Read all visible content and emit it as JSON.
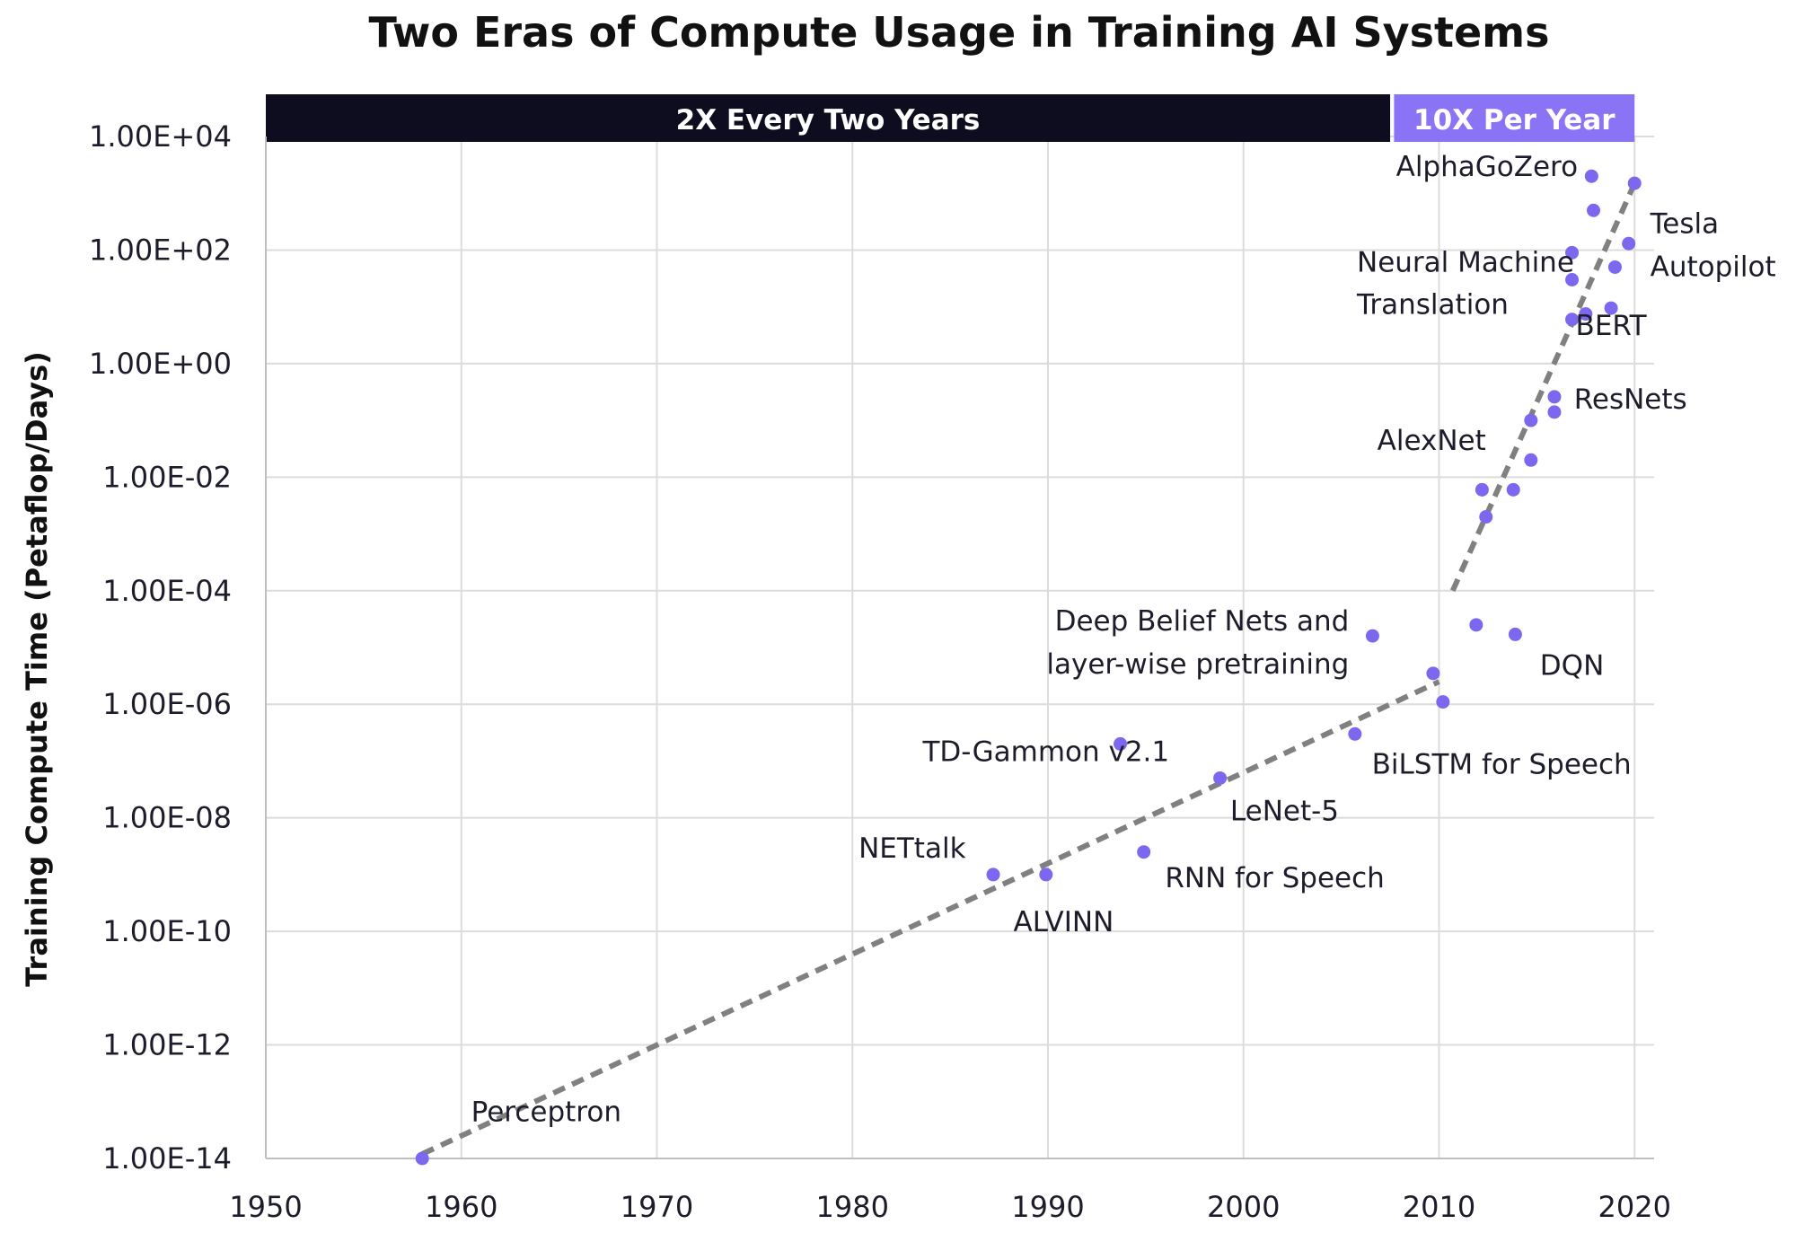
{
  "colors": {
    "point": "#7b68ee",
    "trend": "#808080",
    "banner_dark": "#0d0d1f",
    "banner_light": "#8b73f5",
    "grid": "#dcdcdc"
  },
  "chart_data": {
    "type": "scatter",
    "title": "Two Eras of Compute Usage in Training AI Systems",
    "xlabel": "",
    "ylabel": "Training Compute Time (Petaflop/Days)",
    "xlim": [
      1950,
      2021
    ],
    "ylim_log10": [
      -14,
      4
    ],
    "y_scale": "log",
    "grid": true,
    "x_ticks": [
      "1950",
      "1960",
      "1970",
      "1980",
      "1990",
      "2000",
      "2010",
      "2020"
    ],
    "y_ticks": [
      "1.00E+04",
      "1.00E+02",
      "1.00E+00",
      "1.00E-02",
      "1.00E-04",
      "1.00E-06",
      "1.00E-08",
      "1.00E-10",
      "1.00E-12",
      "1.00E-14"
    ],
    "eras": [
      {
        "label": "2X Every Two Years",
        "start": 1950,
        "end": 2007.5
      },
      {
        "label": "10X Per Year",
        "start": 2007.7,
        "end": 2020
      }
    ],
    "points": [
      {
        "x": 1958,
        "y": 1e-14
      },
      {
        "x": 1987.2,
        "y": 1e-09
      },
      {
        "x": 1989.9,
        "y": 1e-09
      },
      {
        "x": 1993.7,
        "y": 2e-07
      },
      {
        "x": 1994.9,
        "y": 2.5e-09
      },
      {
        "x": 1998.8,
        "y": 5e-08
      },
      {
        "x": 2005.7,
        "y": 3e-07
      },
      {
        "x": 2006.6,
        "y": 1.6e-05
      },
      {
        "x": 2009.7,
        "y": 3.5e-06
      },
      {
        "x": 2010.2,
        "y": 1.1e-06
      },
      {
        "x": 2011.9,
        "y": 2.5e-05
      },
      {
        "x": 2013.9,
        "y": 1.7e-05
      },
      {
        "x": 2012.2,
        "y": 0.006
      },
      {
        "x": 2012.4,
        "y": 0.002
      },
      {
        "x": 2013.8,
        "y": 0.006
      },
      {
        "x": 2014.7,
        "y": 0.02
      },
      {
        "x": 2014.7,
        "y": 0.1
      },
      {
        "x": 2015.9,
        "y": 0.14
      },
      {
        "x": 2015.9,
        "y": 0.26
      },
      {
        "x": 2016.8,
        "y": 6.0
      },
      {
        "x": 2017.5,
        "y": 7.5
      },
      {
        "x": 2018.8,
        "y": 9.5
      },
      {
        "x": 2016.8,
        "y": 30
      },
      {
        "x": 2016.8,
        "y": 90
      },
      {
        "x": 2019.0,
        "y": 50
      },
      {
        "x": 2019.7,
        "y": 130
      },
      {
        "x": 2017.9,
        "y": 500
      },
      {
        "x": 2017.8,
        "y": 2000
      },
      {
        "x": 2020.0,
        "y": 1500
      }
    ],
    "trendlines": [
      {
        "label": "2X Every Two Years",
        "x0": 1958,
        "y0": 1.2e-14,
        "x1": 2010,
        "y1": 2.5e-06
      },
      {
        "label": "10X Per Year",
        "x0": 2010.7,
        "y0": 0.0001,
        "x1": 2020,
        "y1": 1500
      }
    ],
    "annotations": [
      {
        "text": "Perceptron",
        "x": 1960.5,
        "y": 4.5e-14,
        "anchor": "start"
      },
      {
        "text": "NETtalk",
        "x": 1985.8,
        "y": 2e-09,
        "anchor": "end"
      },
      {
        "text": "ALVINN",
        "x": 1990.8,
        "y": 1e-10,
        "anchor": "middle"
      },
      {
        "text": "TD-Gammon v2.1",
        "x": 1989.9,
        "y": 1e-07,
        "anchor": "middle"
      },
      {
        "text": "LeNet-5",
        "x": 2002.1,
        "y": 9e-09,
        "anchor": "middle"
      },
      {
        "text": "RNN for Speech",
        "x": 2001.6,
        "y": 6e-10,
        "anchor": "middle"
      },
      {
        "text": "BiLSTM for Speech",
        "x": 2013.2,
        "y": 6e-08,
        "anchor": "middle"
      },
      {
        "text": "Deep Belief Nets and",
        "x": 2005.4,
        "y": 2e-05,
        "anchor": "end"
      },
      {
        "text": "layer-wise pretraining",
        "x": 2005.4,
        "y": 3.5e-06,
        "anchor": "end"
      },
      {
        "text": "DQN",
        "x": 2016.8,
        "y": 3.3e-06,
        "anchor": "middle"
      },
      {
        "text": "AlexNet",
        "x": 2012.4,
        "y": 0.03,
        "anchor": "end"
      },
      {
        "text": "ResNets",
        "x": 2016.9,
        "y": 0.16,
        "anchor": "start"
      },
      {
        "text": "Neural Machine",
        "x": 2005.8,
        "y": 42,
        "anchor": "start"
      },
      {
        "text": "Translation",
        "x": 2005.8,
        "y": 7.5,
        "anchor": "start"
      },
      {
        "text": "BERT",
        "x": 2018.8,
        "y": 3.2,
        "anchor": "middle"
      },
      {
        "text": "AlphaGoZero",
        "x": 2017.1,
        "y": 2000,
        "anchor": "end"
      },
      {
        "text": "Tesla",
        "x": 2020.8,
        "y": 200,
        "anchor": "start"
      },
      {
        "text": "Autopilot",
        "x": 2020.8,
        "y": 35,
        "anchor": "start"
      }
    ]
  }
}
